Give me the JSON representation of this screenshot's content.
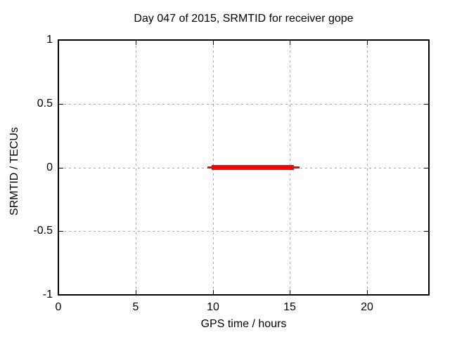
{
  "chart_data": {
    "type": "line",
    "title": "Day 047 of 2015, SRMTID for receiver gope",
    "xlabel": "GPS time / hours",
    "ylabel": "SRMTID / TECUs",
    "xlim": [
      0,
      24
    ],
    "ylim": [
      -1,
      1
    ],
    "xticks": [
      {
        "value": 0,
        "label": "0"
      },
      {
        "value": 5,
        "label": "5"
      },
      {
        "value": 10,
        "label": "10"
      },
      {
        "value": 15,
        "label": "15"
      },
      {
        "value": 20,
        "label": "20"
      }
    ],
    "yticks": [
      {
        "value": 1,
        "label": "1"
      },
      {
        "value": 0.5,
        "label": "0.5"
      },
      {
        "value": 0,
        "label": "0"
      },
      {
        "value": -0.5,
        "label": "-0.5"
      },
      {
        "value": -1,
        "label": "-1"
      }
    ],
    "grid": true,
    "grid_color": "#a8a8a8",
    "border_color": "#000000",
    "background_color": "#ffffff",
    "legend": "none",
    "series": [
      {
        "name": "SRMTID",
        "color": "#ff0000",
        "style": "thick horizontal line at y=0",
        "y": 0,
        "x_start": 9.65,
        "x_end": 15.6,
        "segments": [
          {
            "x0": 9.65,
            "x1": 15.6,
            "y": 0,
            "thickness_px": 3
          },
          {
            "x0": 9.93,
            "x1": 15.25,
            "y": 0,
            "thickness_px": 7
          }
        ]
      }
    ]
  }
}
